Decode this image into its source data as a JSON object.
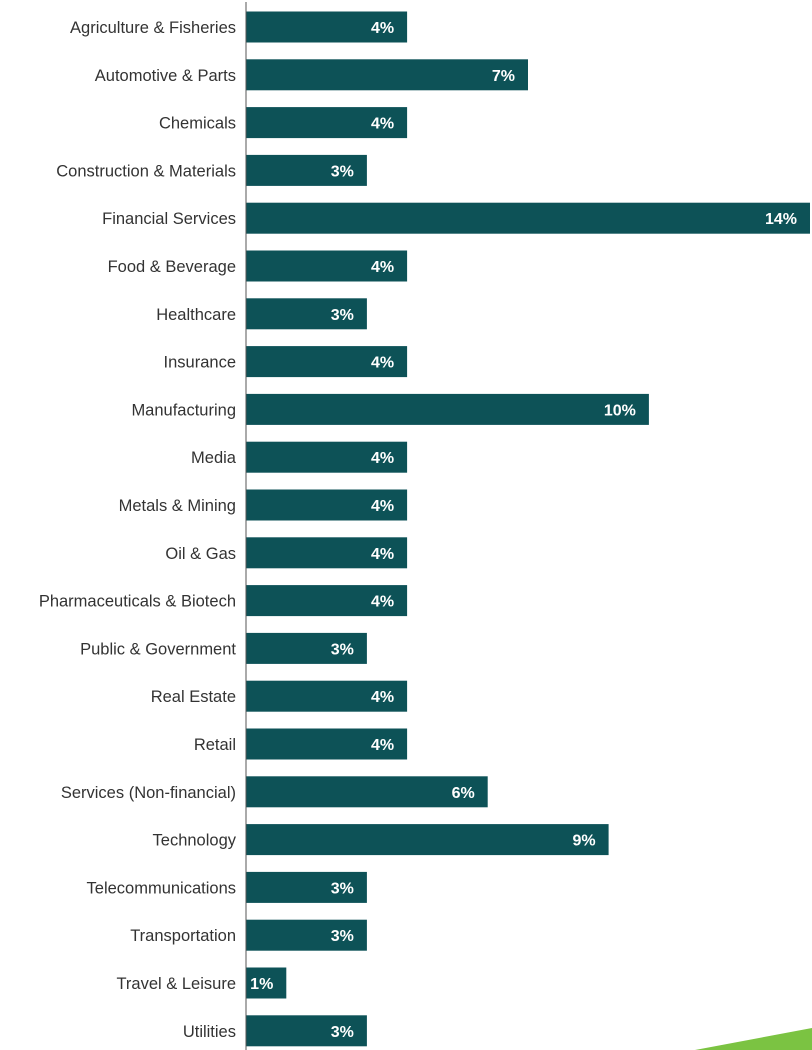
{
  "colors": {
    "bar": "#0d5257",
    "axis": "#555555",
    "label": "#333333",
    "value_label": "#ffffff",
    "accent_green": "#7bc342"
  },
  "chart_data": {
    "type": "bar",
    "orientation": "horizontal",
    "categories": [
      "Agriculture & Fisheries",
      "Automotive & Parts",
      "Chemicals",
      "Construction & Materials",
      "Financial Services",
      "Food & Beverage",
      "Healthcare",
      "Insurance",
      "Manufacturing",
      "Media",
      "Metals & Mining",
      "Oil & Gas",
      "Pharmaceuticals & Biotech",
      "Public & Government",
      "Real Estate",
      "Retail",
      "Services (Non-financial)",
      "Technology",
      "Telecommunications",
      "Transportation",
      "Travel & Leisure",
      "Utilities"
    ],
    "values": [
      4,
      7,
      4,
      3,
      14,
      4,
      3,
      4,
      10,
      4,
      4,
      4,
      4,
      3,
      4,
      4,
      6,
      9,
      3,
      3,
      1,
      3
    ],
    "labels": [
      "4%",
      "7%",
      "4%",
      "3%",
      "14%",
      "4%",
      "3%",
      "4%",
      "10%",
      "4%",
      "4%",
      "4%",
      "4%",
      "3%",
      "4%",
      "4%",
      "6%",
      "9%",
      "3%",
      "3%",
      "1%",
      "3%"
    ],
    "xlim": [
      0,
      14
    ],
    "grid": false,
    "legend": "none"
  }
}
